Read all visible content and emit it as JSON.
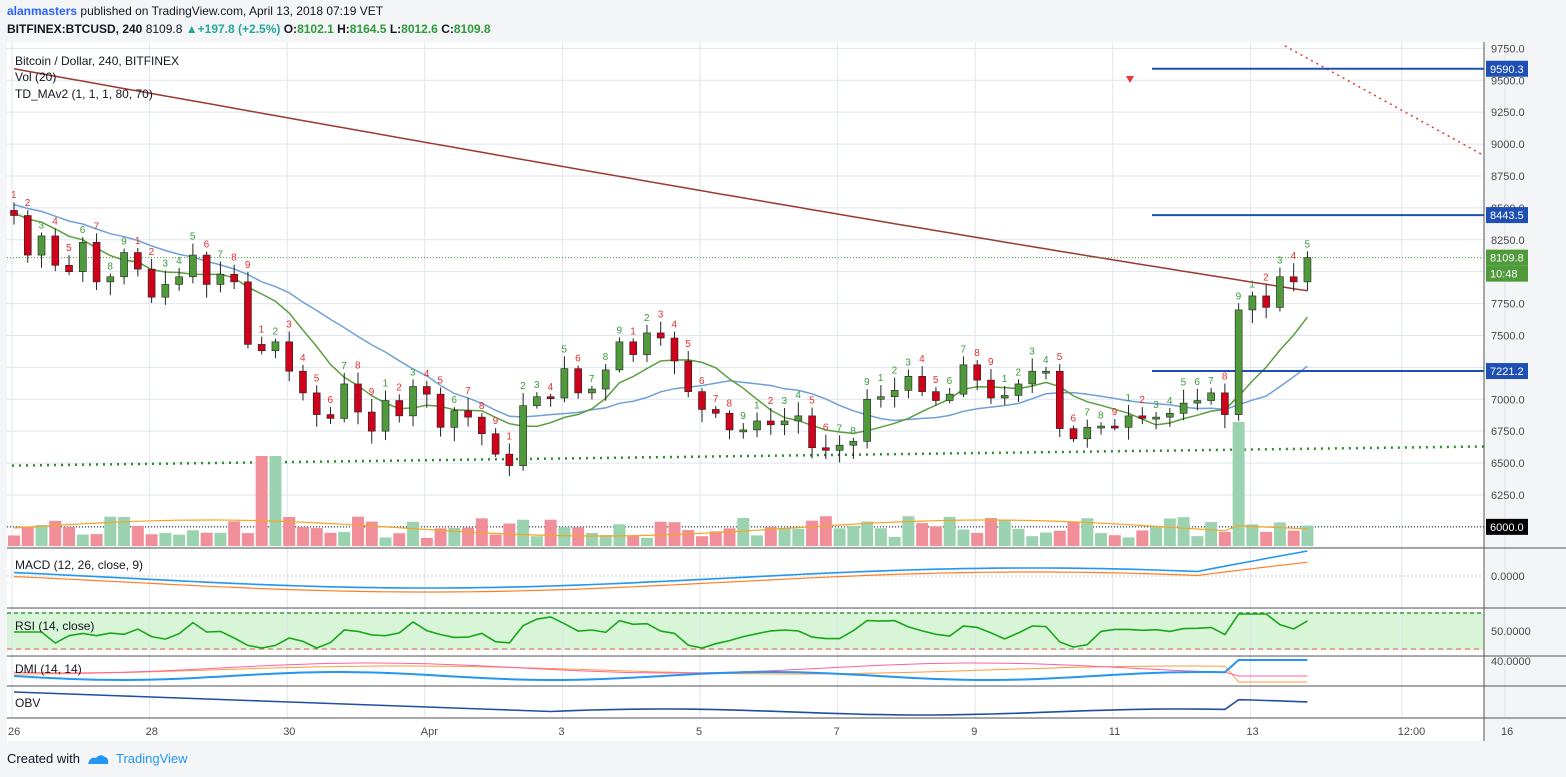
{
  "header": {
    "user": "alanmasters",
    "published": "published on TradingView.com, April 13, 2018 07:19 VET",
    "symbol": "BITFINEX:BTCUSD, 240",
    "last": "8109.8",
    "change": "+197.8 (+2.5%)",
    "o_label": "O:",
    "o": "8102.1",
    "h_label": "H:",
    "h": "8164.5",
    "l_label": "L:",
    "l": "8012.6",
    "c_label": "C:",
    "c": "8109.8"
  },
  "footer": {
    "created": "Created with",
    "brand": "TradingView"
  },
  "colors": {
    "up": "#4f9a3a",
    "down": "#d0021b",
    "ma_long": "#9b3a2e",
    "ma_mid": "#6fa0d8",
    "ma_short": "#5a9e3d",
    "level_line": "#1e4fb5",
    "support_dots": "#2e8b2e",
    "vol_up": "#9bd3b1",
    "vol_down": "#f08f9a",
    "vol_ma": "#f5a623",
    "macd": "#2196f3",
    "signal": "#ff7f27",
    "rsi": "#1aa61a",
    "rsi_band": "#d8f5d8",
    "dmi_plus": "#2196f3",
    "dmi_minus": "#ff5fa0",
    "adx": "#ff9a3c",
    "obv": "#1f4fa0"
  },
  "chart_data": [
    {
      "type": "candlestick",
      "title": "Bitcoin / Dollar, 240, BITFINEX",
      "studies": [
        "Vol (20)",
        "TD_MAv2 (1, 1, 1, 80, 70)"
      ],
      "x_ticks": [
        "26",
        "28",
        "30",
        "Apr",
        "3",
        "5",
        "7",
        "9",
        "11",
        "13",
        "12:00",
        "16"
      ],
      "y_ticks": [
        "9750.0",
        "9500.0",
        "9250.0",
        "9000.0",
        "8750.0",
        "8500.0",
        "8250.0",
        "7750.0",
        "7500.0",
        "7000.0",
        "6750.0",
        "6500.0",
        "6250.0"
      ],
      "ylim": [
        5850,
        9800
      ],
      "price_labels": [
        {
          "text": "9590.3",
          "value": 9590.3,
          "kind": "level"
        },
        {
          "text": "8443.5",
          "value": 8443.5,
          "kind": "level"
        },
        {
          "text": "8109.8",
          "value": 8109.8,
          "kind": "last"
        },
        {
          "text": "10:48",
          "value": 7980,
          "kind": "countdown"
        },
        {
          "text": "7221.2",
          "value": 7221.2,
          "kind": "level"
        },
        {
          "text": "6000.0",
          "value": 6000,
          "kind": "base"
        }
      ],
      "key_levels": [
        9590.3,
        8443.5,
        7221.2
      ],
      "trendline": {
        "from": [
          18.5,
          9770
        ],
        "to": [
          33.6,
          8910
        ]
      },
      "support_line": {
        "from": [
          0,
          6480
        ],
        "to": [
          33.6,
          6630
        ]
      },
      "closes": [
        8440,
        8130,
        8280,
        8050,
        8000,
        8230,
        7920,
        7960,
        8150,
        8020,
        7800,
        7900,
        7960,
        8130,
        7900,
        7980,
        7920,
        7430,
        7380,
        7450,
        7220,
        7050,
        6880,
        6850,
        7120,
        6900,
        6750,
        6990,
        6870,
        7100,
        7040,
        6780,
        6910,
        6860,
        6730,
        6570,
        6480,
        6950,
        7020,
        7010,
        7240,
        7050,
        7080,
        7230,
        7450,
        7350,
        7520,
        7480,
        7300,
        7060,
        6920,
        6890,
        6760,
        6760,
        6830,
        6800,
        6830,
        6870,
        6620,
        6600,
        6640,
        6670,
        7000,
        7020,
        7070,
        7180,
        7060,
        6990,
        7040,
        7270,
        7150,
        7010,
        7030,
        7120,
        7220,
        7220,
        6770,
        6690,
        6780,
        6790,
        6780,
        6870,
        6850,
        6860,
        6890,
        6970,
        6990,
        7050,
        6880,
        7700,
        7810,
        7720,
        7960,
        7920,
        8109.8
      ],
      "volume": {
        "ma_period": 20,
        "base_label": "6000.0"
      }
    },
    {
      "type": "line",
      "title": "MACD (12, 26, close, 9)",
      "y_ticks": [
        "0.0000"
      ],
      "series": [
        {
          "name": "MACD"
        },
        {
          "name": "Signal"
        }
      ]
    },
    {
      "type": "line",
      "title": "RSI (14, close)",
      "y_ticks": [
        "50.0000"
      ],
      "series": [
        {
          "name": "RSI"
        }
      ]
    },
    {
      "type": "line",
      "title": "DMI (14, 14)",
      "y_ticks": [
        "40.0000"
      ],
      "series": [
        {
          "name": "+DI"
        },
        {
          "name": "-DI"
        },
        {
          "name": "ADX"
        }
      ]
    },
    {
      "type": "line",
      "title": "OBV",
      "series": [
        {
          "name": "OBV"
        }
      ]
    }
  ]
}
